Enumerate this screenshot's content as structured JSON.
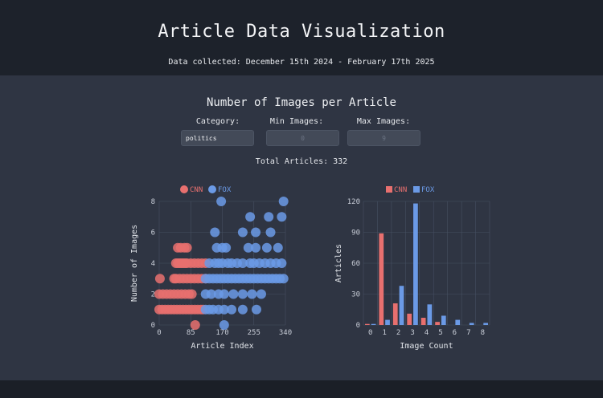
{
  "header": {
    "title": "Article Data Visualization",
    "subtitle": "Data collected: December 15th 2024 - February 17th 2025"
  },
  "section": {
    "title": "Number of Images per Article",
    "total_text": "Total Articles: 332"
  },
  "controls": {
    "category_label": "Category:",
    "category_value": "politics",
    "min_label": "Min Images:",
    "min_value": "0",
    "max_label": "Max Images:",
    "max_value": "9"
  },
  "colors": {
    "cnn": "#e8706f",
    "fox": "#6b9ae6"
  },
  "chart_data": [
    {
      "type": "scatter",
      "title": "",
      "xlabel": "Article Index",
      "ylabel": "Number of Images",
      "xlim": [
        0,
        340
      ],
      "ylim": [
        0,
        8
      ],
      "xticks": [
        0,
        85,
        170,
        255,
        340
      ],
      "yticks": [
        0,
        2,
        4,
        6,
        8
      ],
      "legend": "top-left",
      "grid": true,
      "series": [
        {
          "name": "CNN",
          "points": [
            [
              0,
              1
            ],
            [
              8,
              1
            ],
            [
              16,
              1
            ],
            [
              24,
              1
            ],
            [
              32,
              1
            ],
            [
              40,
              1
            ],
            [
              48,
              1
            ],
            [
              56,
              1
            ],
            [
              64,
              1
            ],
            [
              72,
              1
            ],
            [
              80,
              1
            ],
            [
              88,
              1
            ],
            [
              96,
              1
            ],
            [
              104,
              1
            ],
            [
              112,
              1
            ],
            [
              118,
              1
            ],
            [
              0,
              2
            ],
            [
              10,
              2
            ],
            [
              20,
              2
            ],
            [
              30,
              2
            ],
            [
              40,
              2
            ],
            [
              50,
              2
            ],
            [
              60,
              2
            ],
            [
              70,
              2
            ],
            [
              80,
              2
            ],
            [
              88,
              2
            ],
            [
              2,
              3
            ],
            [
              40,
              3
            ],
            [
              45,
              3
            ],
            [
              55,
              3
            ],
            [
              65,
              3
            ],
            [
              75,
              3
            ],
            [
              85,
              3
            ],
            [
              95,
              3
            ],
            [
              105,
              3
            ],
            [
              115,
              3
            ],
            [
              125,
              3
            ],
            [
              45,
              4
            ],
            [
              50,
              4
            ],
            [
              55,
              4
            ],
            [
              60,
              4
            ],
            [
              65,
              4
            ],
            [
              70,
              4
            ],
            [
              75,
              4
            ],
            [
              85,
              4
            ],
            [
              95,
              4
            ],
            [
              105,
              4
            ],
            [
              115,
              4
            ],
            [
              125,
              4
            ],
            [
              50,
              5
            ],
            [
              58,
              5
            ],
            [
              68,
              5
            ],
            [
              75,
              5
            ],
            [
              97,
              0
            ]
          ]
        },
        {
          "name": "FOX",
          "points": [
            [
              125,
              1
            ],
            [
              135,
              1
            ],
            [
              145,
              1
            ],
            [
              160,
              1
            ],
            [
              175,
              1
            ],
            [
              195,
              1
            ],
            [
              225,
              1
            ],
            [
              262,
              1
            ],
            [
              125,
              2
            ],
            [
              140,
              2
            ],
            [
              160,
              2
            ],
            [
              175,
              2
            ],
            [
              200,
              2
            ],
            [
              225,
              2
            ],
            [
              250,
              2
            ],
            [
              275,
              2
            ],
            [
              125,
              3
            ],
            [
              135,
              3
            ],
            [
              145,
              3
            ],
            [
              155,
              3
            ],
            [
              165,
              3
            ],
            [
              175,
              3
            ],
            [
              185,
              3
            ],
            [
              195,
              3
            ],
            [
              205,
              3
            ],
            [
              215,
              3
            ],
            [
              225,
              3
            ],
            [
              235,
              3
            ],
            [
              245,
              3
            ],
            [
              255,
              3
            ],
            [
              265,
              3
            ],
            [
              275,
              3
            ],
            [
              285,
              3
            ],
            [
              295,
              3
            ],
            [
              305,
              3
            ],
            [
              315,
              3
            ],
            [
              325,
              3
            ],
            [
              335,
              3
            ],
            [
              135,
              4
            ],
            [
              150,
              4
            ],
            [
              160,
              4
            ],
            [
              170,
              4
            ],
            [
              185,
              4
            ],
            [
              195,
              4
            ],
            [
              210,
              4
            ],
            [
              225,
              4
            ],
            [
              245,
              4
            ],
            [
              255,
              4
            ],
            [
              270,
              4
            ],
            [
              285,
              4
            ],
            [
              300,
              4
            ],
            [
              315,
              4
            ],
            [
              330,
              4
            ],
            [
              155,
              5
            ],
            [
              170,
              5
            ],
            [
              180,
              5
            ],
            [
              240,
              5
            ],
            [
              260,
              5
            ],
            [
              290,
              5
            ],
            [
              320,
              5
            ],
            [
              150,
              6
            ],
            [
              225,
              6
            ],
            [
              260,
              6
            ],
            [
              300,
              6
            ],
            [
              245,
              7
            ],
            [
              295,
              7
            ],
            [
              330,
              7
            ],
            [
              167,
              8
            ],
            [
              335,
              8
            ],
            [
              175,
              0
            ]
          ]
        }
      ]
    },
    {
      "type": "bar",
      "title": "",
      "xlabel": "Image Count",
      "ylabel": "Articles",
      "categories": [
        "0",
        "1",
        "2",
        "3",
        "4",
        "5",
        "6",
        "7",
        "8"
      ],
      "ylim": [
        0,
        120
      ],
      "yticks": [
        0,
        30,
        60,
        90,
        120
      ],
      "legend": "top-center",
      "grid": true,
      "series": [
        {
          "name": "CNN",
          "values": [
            1,
            89,
            21,
            11,
            7,
            3,
            0,
            0,
            0
          ]
        },
        {
          "name": "FOX",
          "values": [
            1,
            5,
            38,
            118,
            20,
            9,
            5,
            2,
            2
          ]
        }
      ]
    }
  ]
}
